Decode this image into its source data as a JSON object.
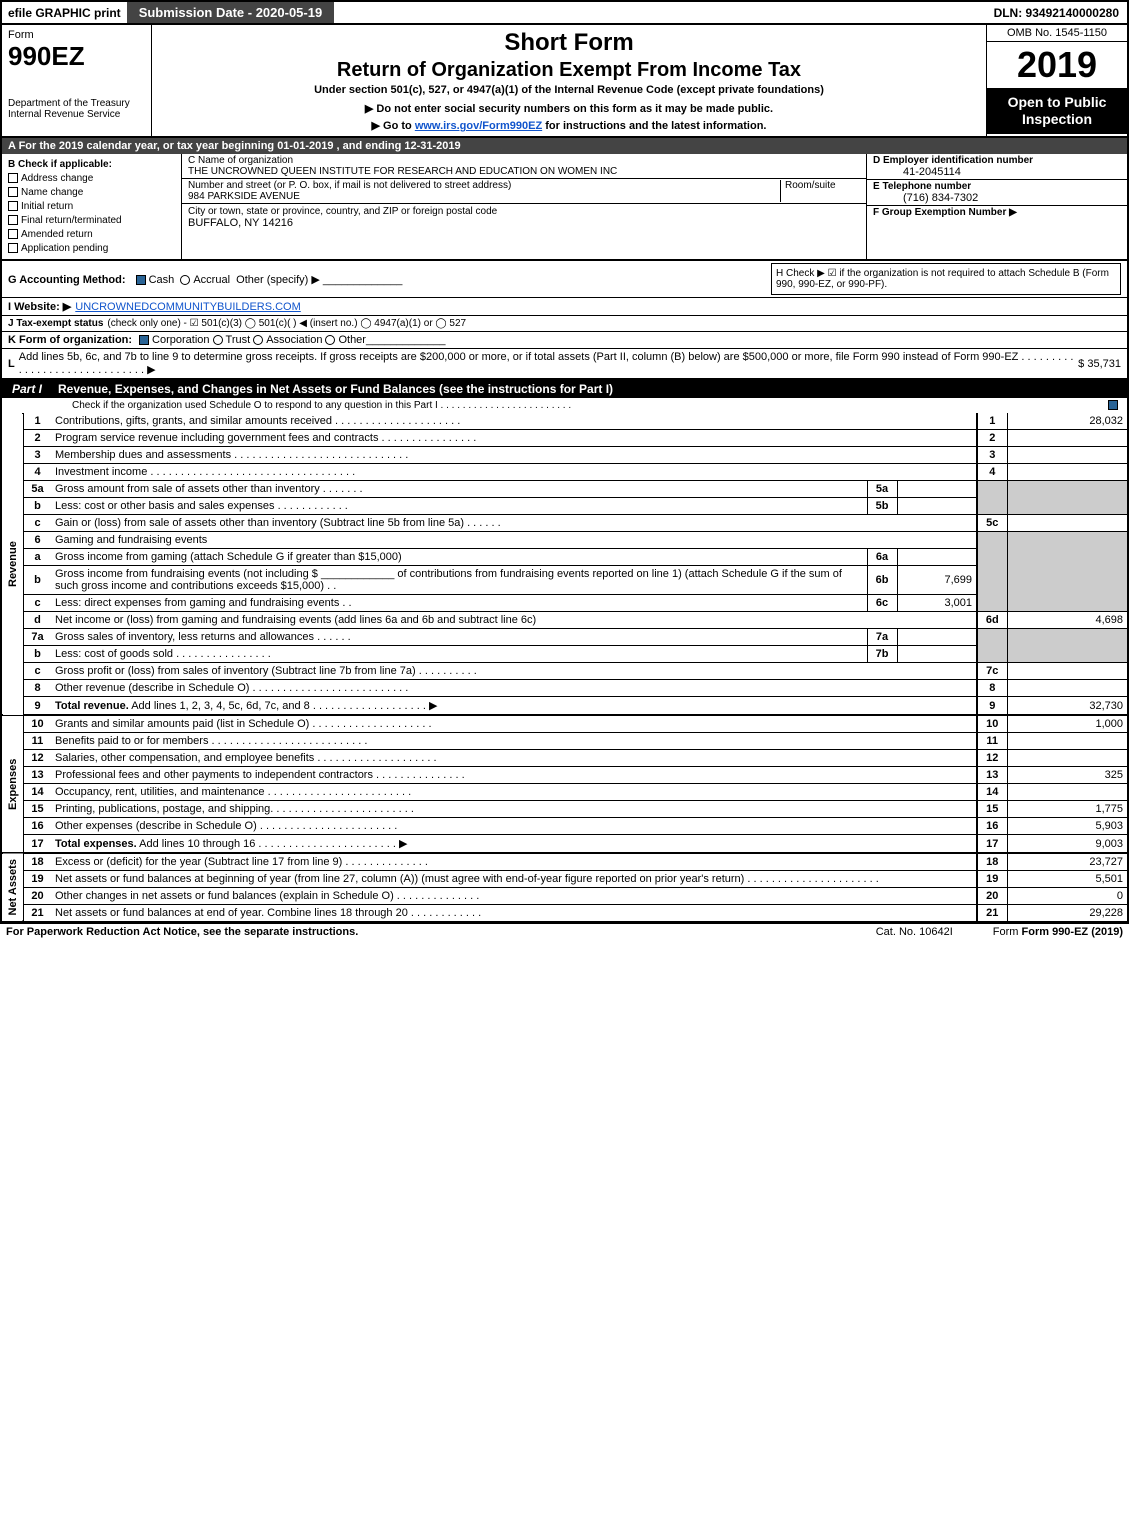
{
  "top": {
    "efile": "efile GRAPHIC print",
    "submission": "Submission Date - 2020-05-19",
    "dln": "DLN: 93492140000280"
  },
  "header": {
    "form_word": "Form",
    "form_num": "990EZ",
    "dept1": "Department of the Treasury",
    "dept2": "Internal Revenue Service",
    "short_form": "Short Form",
    "main_title": "Return of Organization Exempt From Income Tax",
    "sub_title": "Under section 501(c), 527, or 4947(a)(1) of the Internal Revenue Code (except private foundations)",
    "notice": "▶ Do not enter social security numbers on this form as it may be made public.",
    "goto_pre": "▶ Go to ",
    "goto_link": "www.irs.gov/Form990EZ",
    "goto_post": " for instructions and the latest information.",
    "omb": "OMB No. 1545-1150",
    "year": "2019",
    "open": "Open to Public Inspection"
  },
  "rowA": "A For the 2019 calendar year, or tax year beginning 01-01-2019 , and ending 12-31-2019",
  "colB": {
    "title": "B Check if applicable:",
    "items": [
      "Address change",
      "Name change",
      "Initial return",
      "Final return/terminated",
      "Amended return",
      "Application pending"
    ]
  },
  "colC": {
    "name_lbl": "C Name of organization",
    "name": "THE UNCROWNED QUEEN INSTITUTE FOR RESEARCH AND EDUCATION ON WOMEN INC",
    "street_lbl": "Number and street (or P. O. box, if mail is not delivered to street address)",
    "room_lbl": "Room/suite",
    "street": "984 PARKSIDE AVENUE",
    "city_lbl": "City or town, state or province, country, and ZIP or foreign postal code",
    "city": "BUFFALO, NY  14216"
  },
  "colR": {
    "d_lbl": "D Employer identification number",
    "d_val": "41-2045114",
    "e_lbl": "E Telephone number",
    "e_val": "(716) 834-7302",
    "f_lbl": "F Group Exemption Number  ▶"
  },
  "G": {
    "lbl": "G Accounting Method:",
    "cash": "Cash",
    "accrual": "Accrual",
    "other": "Other (specify) ▶"
  },
  "H": {
    "text": "H Check ▶ ☑ if the organization is not required to attach Schedule B (Form 990, 990-EZ, or 990-PF)."
  },
  "I": {
    "lbl": "I Website: ▶",
    "val": "UNCROWNEDCOMMUNITYBUILDERS.COM"
  },
  "J": {
    "lbl": "J Tax-exempt status",
    "txt": "(check only one) - ☑ 501(c)(3)  ◯ 501(c)(  ) ◀ (insert no.)  ◯ 4947(a)(1) or  ◯ 527"
  },
  "K": {
    "lbl": "K Form of organization:",
    "corp": "Corporation",
    "trust": "Trust",
    "assoc": "Association",
    "other": "Other"
  },
  "L": {
    "lbl": "L",
    "txt": "Add lines 5b, 6c, and 7b to line 9 to determine gross receipts. If gross receipts are $200,000 or more, or if total assets (Part II, column (B) below) are $500,000 or more, file Form 990 instead of Form 990-EZ  .  .  .  .  .  .  .  .  .  .  .  .  .  .  .  .  .  .  .  .  .  .  .  .  .  .  .  .  .  .  ▶",
    "val": "$ 35,731"
  },
  "partI": {
    "lbl": "Part I",
    "title": "Revenue, Expenses, and Changes in Net Assets or Fund Balances (see the instructions for Part I)",
    "sub": "Check if the organization used Schedule O to respond to any question in this Part I  .  .  .  .  .  .  .  .  .  .  .  .  .  .  .  .  .  .  .  .  .  .  .  ."
  },
  "sections": {
    "revenue": "Revenue",
    "expenses": "Expenses",
    "netassets": "Net Assets"
  },
  "lines": {
    "l1": {
      "n": "1",
      "d": "Contributions, gifts, grants, and similar amounts received  .  .  .  .  .  .  .  .  .  .  .  .  .  .  .  .  .  .  .  .  .",
      "rn": "1",
      "rv": "28,032"
    },
    "l2": {
      "n": "2",
      "d": "Program service revenue including government fees and contracts  .  .  .  .  .  .  .  .  .  .  .  .  .  .  .  .",
      "rn": "2",
      "rv": ""
    },
    "l3": {
      "n": "3",
      "d": "Membership dues and assessments  .  .  .  .  .  .  .  .  .  .  .  .  .  .  .  .  .  .  .  .  .  .  .  .  .  .  .  .  .",
      "rn": "3",
      "rv": ""
    },
    "l4": {
      "n": "4",
      "d": "Investment income  .  .  .  .  .  .  .  .  .  .  .  .  .  .  .  .  .  .  .  .  .  .  .  .  .  .  .  .  .  .  .  .  .  .",
      "rn": "4",
      "rv": ""
    },
    "l5a": {
      "n": "5a",
      "d": "Gross amount from sale of assets other than inventory  .  .  .  .  .  .  .",
      "sb": "5a",
      "sv": ""
    },
    "l5b": {
      "n": "b",
      "d": "Less: cost or other basis and sales expenses  .  .  .  .  .  .  .  .  .  .  .  .",
      "sb": "5b",
      "sv": ""
    },
    "l5c": {
      "n": "c",
      "d": "Gain or (loss) from sale of assets other than inventory (Subtract line 5b from line 5a)  .  .  .  .  .  .",
      "rn": "5c",
      "rv": ""
    },
    "l6": {
      "n": "6",
      "d": "Gaming and fundraising events"
    },
    "l6a": {
      "n": "a",
      "d": "Gross income from gaming (attach Schedule G if greater than $15,000)",
      "sb": "6a",
      "sv": ""
    },
    "l6b": {
      "n": "b",
      "d": "Gross income from fundraising events (not including $ ____________ of contributions from fundraising events reported on line 1) (attach Schedule G if the sum of such gross income and contributions exceeds $15,000)    .  .",
      "sb": "6b",
      "sv": "7,699"
    },
    "l6c": {
      "n": "c",
      "d": "Less: direct expenses from gaming and fundraising events          .  .",
      "sb": "6c",
      "sv": "3,001"
    },
    "l6d": {
      "n": "d",
      "d": "Net income or (loss) from gaming and fundraising events (add lines 6a and 6b and subtract line 6c)",
      "rn": "6d",
      "rv": "4,698"
    },
    "l7a": {
      "n": "7a",
      "d": "Gross sales of inventory, less returns and allowances  .  .  .  .  .  .",
      "sb": "7a",
      "sv": ""
    },
    "l7b": {
      "n": "b",
      "d": "Less: cost of goods sold            .  .  .  .  .  .  .  .  .  .  .  .  .  .  .  .",
      "sb": "7b",
      "sv": ""
    },
    "l7c": {
      "n": "c",
      "d": "Gross profit or (loss) from sales of inventory (Subtract line 7b from line 7a)  .  .  .  .  .  .  .  .  .  .",
      "rn": "7c",
      "rv": ""
    },
    "l8": {
      "n": "8",
      "d": "Other revenue (describe in Schedule O)  .  .  .  .  .  .  .  .  .  .  .  .  .  .  .  .  .  .  .  .  .  .  .  .  .  .",
      "rn": "8",
      "rv": ""
    },
    "l9": {
      "n": "9",
      "d": "<b>Total revenue.</b> Add lines 1, 2, 3, 4, 5c, 6d, 7c, and 8   .  .  .  .  .  .  .  .  .  .  .  .  .  .  .  .  .  .  .                ▶",
      "rn": "9",
      "rv": "32,730"
    },
    "l10": {
      "n": "10",
      "d": "Grants and similar amounts paid (list in Schedule O)  .  .  .  .  .  .  .  .  .  .  .  .  .  .  .  .  .  .  .  .",
      "rn": "10",
      "rv": "1,000"
    },
    "l11": {
      "n": "11",
      "d": "Benefits paid to or for members       .  .  .  .  .  .  .  .  .  .  .  .  .  .  .  .  .  .  .  .  .  .  .  .  .  .",
      "rn": "11",
      "rv": ""
    },
    "l12": {
      "n": "12",
      "d": "Salaries, other compensation, and employee benefits  .  .  .  .  .  .  .  .  .  .  .  .  .  .  .  .  .  .  .  .",
      "rn": "12",
      "rv": ""
    },
    "l13": {
      "n": "13",
      "d": "Professional fees and other payments to independent contractors  .  .  .  .  .  .  .  .  .  .  .  .  .  .  .",
      "rn": "13",
      "rv": "325"
    },
    "l14": {
      "n": "14",
      "d": "Occupancy, rent, utilities, and maintenance  .  .  .  .  .  .  .  .  .  .  .  .  .  .  .  .  .  .  .  .  .  .  .  .",
      "rn": "14",
      "rv": ""
    },
    "l15": {
      "n": "15",
      "d": "Printing, publications, postage, and shipping.  .  .  .  .  .  .  .  .  .  .  .  .  .  .  .  .  .  .  .  .  .  .  .",
      "rn": "15",
      "rv": "1,775"
    },
    "l16": {
      "n": "16",
      "d": "Other expenses (describe in Schedule O)       .  .  .  .  .  .  .  .  .  .  .  .  .  .  .  .  .  .  .  .  .  .  .",
      "rn": "16",
      "rv": "5,903"
    },
    "l17": {
      "n": "17",
      "d": "<b>Total expenses.</b> Add lines 10 through 16     .  .  .  .  .  .  .  .  .  .  .  .  .  .  .  .  .  .  .  .  .  .  .                ▶",
      "rn": "17",
      "rv": "9,003"
    },
    "l18": {
      "n": "18",
      "d": "Excess or (deficit) for the year (Subtract line 17 from line 9)          .  .  .  .  .  .  .  .  .  .  .  .  .  .",
      "rn": "18",
      "rv": "23,727"
    },
    "l19": {
      "n": "19",
      "d": "Net assets or fund balances at beginning of year (from line 27, column (A)) (must agree with end-of-year figure reported on prior year's return)  .  .  .  .  .  .  .  .  .  .  .  .  .  .  .  .  .  .  .  .  .  .",
      "rn": "19",
      "rv": "5,501"
    },
    "l20": {
      "n": "20",
      "d": "Other changes in net assets or fund balances (explain in Schedule O)  .  .  .  .  .  .  .  .  .  .  .  .  .  .",
      "rn": "20",
      "rv": "0"
    },
    "l21": {
      "n": "21",
      "d": "Net assets or fund balances at end of year. Combine lines 18 through 20  .  .  .  .  .  .  .  .  .  .  .  .",
      "rn": "21",
      "rv": "29,228"
    }
  },
  "footer": {
    "pra": "For Paperwork Reduction Act Notice, see the separate instructions.",
    "cat": "Cat. No. 10642I",
    "form": "Form 990-EZ (2019)"
  }
}
